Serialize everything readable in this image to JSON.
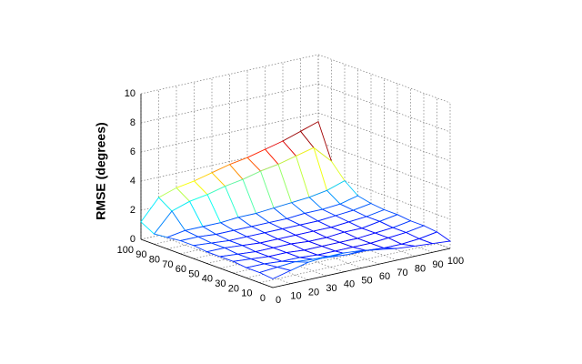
{
  "chart_data": {
    "type": "surface",
    "zlabel": "RMSE (degrees)",
    "x": [
      0,
      10,
      20,
      30,
      40,
      50,
      60,
      70,
      80,
      90,
      100
    ],
    "y": [
      0,
      10,
      20,
      30,
      40,
      50,
      60,
      70,
      80,
      90,
      100
    ],
    "z": [
      [
        0.6,
        0.9,
        1.2,
        1.3,
        1.3,
        1.2,
        1.0,
        0.8,
        0.7,
        0.6,
        0.5
      ],
      [
        0.7,
        0.8,
        0.9,
        0.8,
        0.7,
        0.6,
        0.6,
        0.5,
        0.5,
        0.6,
        0.8
      ],
      [
        0.7,
        0.7,
        0.6,
        0.6,
        0.5,
        0.5,
        0.5,
        0.5,
        0.6,
        0.7,
        0.9
      ],
      [
        0.8,
        0.7,
        0.6,
        0.6,
        0.5,
        0.5,
        0.5,
        0.5,
        0.6,
        0.7,
        0.9
      ],
      [
        0.8,
        0.7,
        0.6,
        0.6,
        0.6,
        0.5,
        0.5,
        0.6,
        0.6,
        0.8,
        1.0
      ],
      [
        0.8,
        0.8,
        0.7,
        0.6,
        0.6,
        0.6,
        0.6,
        0.6,
        0.7,
        0.8,
        1.0
      ],
      [
        0.9,
        0.8,
        0.7,
        0.7,
        0.7,
        0.7,
        0.7,
        0.7,
        0.8,
        0.9,
        1.1
      ],
      [
        0.9,
        0.9,
        0.8,
        0.8,
        0.8,
        0.8,
        0.8,
        0.9,
        0.9,
        1.0,
        1.3
      ],
      [
        0.8,
        1.0,
        1.0,
        1.0,
        1.1,
        1.1,
        1.2,
        1.3,
        1.4,
        1.6,
        2.0
      ],
      [
        0.7,
        2.0,
        2.4,
        2.6,
        2.9,
        3.1,
        3.4,
        3.6,
        3.9,
        4.2,
        3.0
      ],
      [
        1.2,
        2.6,
        3.0,
        3.2,
        3.5,
        3.8,
        4.0,
        4.3,
        4.6,
        5.0,
        5.4
      ]
    ],
    "xlim": [
      0,
      100
    ],
    "ylim": [
      0,
      100
    ],
    "zlim": [
      0,
      10
    ],
    "xticks": [
      0,
      10,
      20,
      30,
      40,
      50,
      60,
      70,
      80,
      90,
      100
    ],
    "yticks": [
      0,
      10,
      20,
      30,
      40,
      50,
      60,
      70,
      80,
      90,
      100
    ],
    "zticks": [
      0,
      2,
      4,
      6,
      8,
      10
    ],
    "grid": true,
    "colormap": "jet"
  }
}
